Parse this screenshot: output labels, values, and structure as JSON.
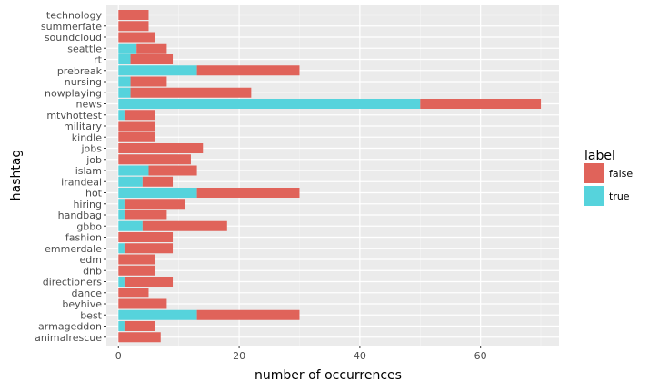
{
  "chart_data": {
    "type": "bar",
    "orientation": "horizontal",
    "stacked": true,
    "xlabel": "number of occurrences",
    "ylabel": "hashtag",
    "xlim": [
      -2,
      73
    ],
    "x_ticks": [
      0,
      20,
      40,
      60
    ],
    "grid": true,
    "legend_title": "label",
    "legend_position": "right",
    "categories": [
      "technology",
      "summerfate",
      "soundcloud",
      "seattle",
      "rt",
      "prebreak",
      "nursing",
      "nowplaying",
      "news",
      "mtvhottest",
      "military",
      "kindle",
      "jobs",
      "job",
      "islam",
      "irandeal",
      "hot",
      "hiring",
      "handbag",
      "gbbo",
      "fashion",
      "emmerdale",
      "edm",
      "dnb",
      "directioners",
      "dance",
      "beyhive",
      "best",
      "armageddon",
      "animalrescue"
    ],
    "series": [
      {
        "name": "true",
        "color": "#56d3dc",
        "values": [
          0,
          0,
          0,
          3,
          2,
          13,
          2,
          2,
          50,
          1,
          0,
          0,
          0,
          0,
          5,
          4,
          13,
          1,
          1,
          4,
          0,
          1,
          0,
          0,
          1,
          0,
          0,
          13,
          1,
          0
        ]
      },
      {
        "name": "false",
        "color": "#e0635a",
        "values": [
          5,
          5,
          6,
          5,
          7,
          17,
          6,
          20,
          20,
          5,
          6,
          6,
          14,
          12,
          8,
          5,
          17,
          10,
          7,
          14,
          9,
          8,
          6,
          6,
          8,
          5,
          8,
          17,
          5,
          7
        ]
      }
    ]
  }
}
